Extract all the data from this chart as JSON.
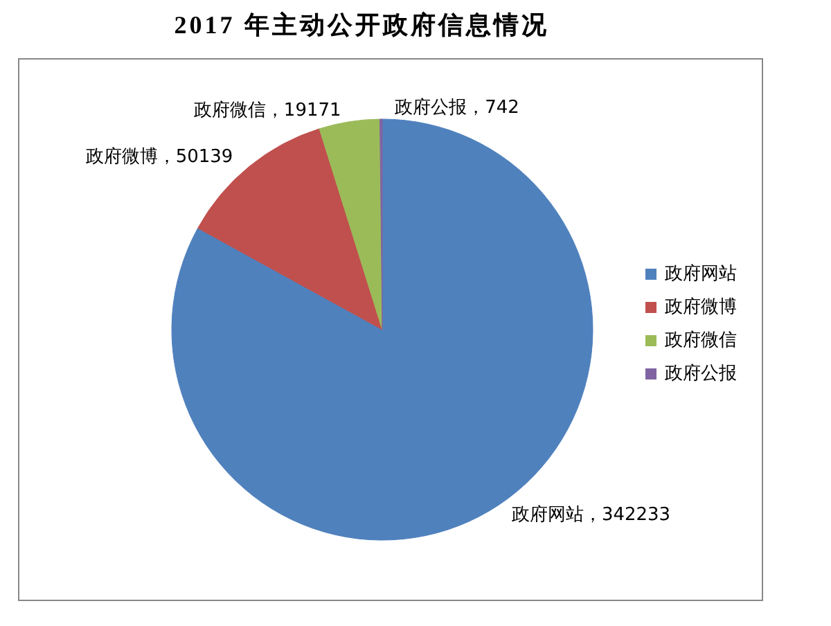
{
  "chart_data": {
    "type": "pie",
    "title": "2017 年主动公开政府信息情况",
    "categories": [
      "政府网站",
      "政府微博",
      "政府微信",
      "政府公报"
    ],
    "values": [
      342233,
      50139,
      19171,
      742
    ],
    "colors": [
      "#4f81bd",
      "#c0504d",
      "#9bbb59",
      "#8064a2"
    ],
    "value_labels": [
      "政府网站，342233",
      "政府微博，50139",
      "政府微信，19171",
      "政府公报，742"
    ],
    "legend": "right"
  }
}
